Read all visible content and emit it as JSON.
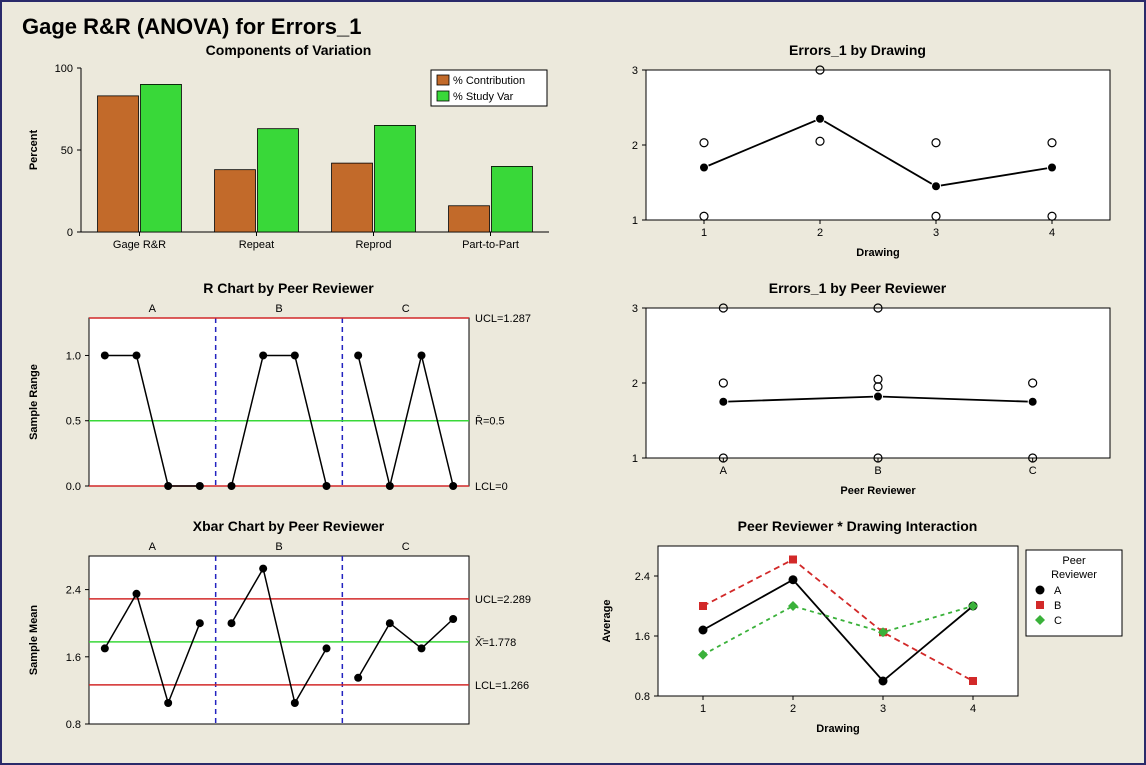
{
  "title": "Gage R&R (ANOVA) for Errors_1",
  "colors": {
    "bg": "#ece9dc",
    "orange": "#c26a2a",
    "green": "#39d839",
    "red": "#d22929",
    "blue": "#2323c0",
    "black": "#000000",
    "green_dash": "#3ab13a"
  },
  "components_of_variation": {
    "title": "Components of Variation",
    "ylabel": "Percent",
    "ylim": [
      0,
      100
    ],
    "ytick_step": 50,
    "categories": [
      "Gage R&R",
      "Repeat",
      "Reprod",
      "Part-to-Part"
    ],
    "series": [
      {
        "name": "% Contribution",
        "color": "#c26a2a",
        "values": [
          83,
          38,
          42,
          16
        ]
      },
      {
        "name": "% Study Var",
        "color": "#39d839",
        "values": [
          90,
          63,
          65,
          40
        ]
      }
    ],
    "bar_width": 0.35
  },
  "r_chart": {
    "title": "R Chart by Peer Reviewer",
    "ylabel": "Sample Range",
    "groups": [
      "A",
      "B",
      "C"
    ],
    "ylim": [
      0.0,
      1.287
    ],
    "yticks": [
      0.0,
      0.5,
      1.0
    ],
    "ucl": {
      "value": 1.287,
      "label": "UCL=1.287",
      "color": "#d22929"
    },
    "center": {
      "value": 0.5,
      "label": "R̄=0.5",
      "color": "#39d839"
    },
    "lcl": {
      "value": 0.0,
      "label": "LCL=0",
      "color": "#d22929"
    },
    "points": [
      [
        1.0,
        1.0,
        0.0,
        0.0
      ],
      [
        0.0,
        1.0,
        1.0,
        0.0
      ],
      [
        1.0,
        0.0,
        1.0,
        0.0
      ]
    ]
  },
  "xbar_chart": {
    "title": "Xbar Chart by Peer Reviewer",
    "ylabel": "Sample Mean",
    "groups": [
      "A",
      "B",
      "C"
    ],
    "ylim": [
      0.8,
      2.8
    ],
    "yticks": [
      0.8,
      1.6,
      2.4
    ],
    "ucl": {
      "value": 2.289,
      "label": "UCL=2.289",
      "color": "#d22929"
    },
    "center": {
      "value": 1.778,
      "label": "X̄̄=1.778",
      "color": "#39d839"
    },
    "lcl": {
      "value": 1.266,
      "label": "LCL=1.266",
      "color": "#d22929"
    },
    "points": [
      [
        1.7,
        2.35,
        1.05,
        2.0
      ],
      [
        2.0,
        2.65,
        1.05,
        1.7
      ],
      [
        1.35,
        2.0,
        1.7,
        2.05
      ]
    ]
  },
  "errors_by_drawing": {
    "title": "Errors_1 by Drawing",
    "xlabel": "Drawing",
    "xvals": [
      1,
      2,
      3,
      4
    ],
    "ylim": [
      1,
      3
    ],
    "yticks": [
      1,
      2,
      3
    ],
    "scatter": [
      {
        "x": 1,
        "y": 1.05
      },
      {
        "x": 1,
        "y": 2.03
      },
      {
        "x": 2,
        "y": 2.05
      },
      {
        "x": 2,
        "y": 3.0
      },
      {
        "x": 3,
        "y": 1.05
      },
      {
        "x": 3,
        "y": 2.03
      },
      {
        "x": 4,
        "y": 1.05
      },
      {
        "x": 4,
        "y": 2.03
      }
    ],
    "line": [
      1.7,
      2.35,
      1.45,
      1.7
    ]
  },
  "errors_by_reviewer": {
    "title": "Errors_1 by Peer Reviewer",
    "xlabel": "Peer Reviewer",
    "xvals": [
      "A",
      "B",
      "C"
    ],
    "ylim": [
      1,
      3
    ],
    "yticks": [
      1,
      2,
      3
    ],
    "scatter": [
      {
        "x": 0,
        "y": 1.0
      },
      {
        "x": 0,
        "y": 2.0
      },
      {
        "x": 0,
        "y": 3.0
      },
      {
        "x": 1,
        "y": 1.0
      },
      {
        "x": 1,
        "y": 1.95
      },
      {
        "x": 1,
        "y": 2.05
      },
      {
        "x": 1,
        "y": 3.0
      },
      {
        "x": 2,
        "y": 1.0
      },
      {
        "x": 2,
        "y": 2.0
      }
    ],
    "line": [
      1.75,
      1.82,
      1.75
    ]
  },
  "interaction": {
    "title": "Peer Reviewer * Drawing Interaction",
    "xlabel": "Drawing",
    "ylabel": "Average",
    "xvals": [
      1,
      2,
      3,
      4
    ],
    "ylim": [
      0.8,
      2.8
    ],
    "yticks": [
      0.8,
      1.6,
      2.4
    ],
    "legend_title": "Peer Reviewer",
    "series": [
      {
        "name": "A",
        "color": "#000000",
        "marker": "circle",
        "dash": "none",
        "values": [
          1.68,
          2.35,
          1.0,
          2.0
        ]
      },
      {
        "name": "B",
        "color": "#d22929",
        "marker": "square",
        "dash": "6,4",
        "values": [
          2.0,
          2.62,
          1.65,
          1.0
        ]
      },
      {
        "name": "C",
        "color": "#3ab13a",
        "marker": "diamond",
        "dash": "4,4",
        "values": [
          1.35,
          2.0,
          1.65,
          2.0
        ]
      }
    ]
  }
}
